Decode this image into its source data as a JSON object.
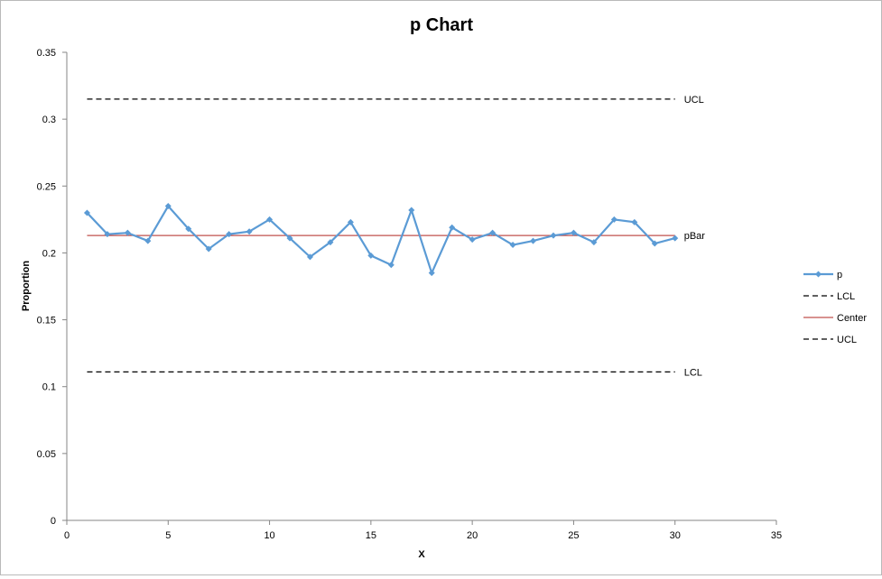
{
  "chart_data": {
    "type": "line",
    "title": "p Chart",
    "xlabel": "X",
    "ylabel": "Proportion",
    "xlim": [
      0,
      35
    ],
    "ylim": [
      0,
      0.35
    ],
    "x_ticks": [
      "0",
      "5",
      "10",
      "15",
      "20",
      "25",
      "30",
      "35"
    ],
    "y_ticks": [
      "0",
      "0.05",
      "0.1",
      "0.15",
      "0.2",
      "0.25",
      "0.3",
      "0.35"
    ],
    "grid": false,
    "legend_position": "right",
    "series": [
      {
        "name": "p",
        "color": "#5b9bd5",
        "style": "solid-markers",
        "x": [
          1,
          2,
          3,
          4,
          5,
          6,
          7,
          8,
          9,
          10,
          11,
          12,
          13,
          14,
          15,
          16,
          17,
          18,
          19,
          20,
          21,
          22,
          23,
          24,
          25,
          26,
          27,
          28,
          29,
          30
        ],
        "y": [
          0.23,
          0.214,
          0.215,
          0.209,
          0.235,
          0.218,
          0.203,
          0.214,
          0.216,
          0.225,
          0.211,
          0.197,
          0.208,
          0.223,
          0.198,
          0.191,
          0.232,
          0.185,
          0.219,
          0.21,
          0.215,
          0.206,
          0.209,
          0.213,
          0.215,
          0.208,
          0.225,
          0.223,
          0.207,
          0.211
        ]
      },
      {
        "name": "LCL",
        "color": "#000000",
        "style": "dashed",
        "x": [
          1,
          30
        ],
        "y": [
          0.111,
          0.111
        ]
      },
      {
        "name": "Center",
        "color": "#c0504d",
        "style": "solid",
        "x": [
          1,
          30
        ],
        "y": [
          0.213,
          0.213
        ]
      },
      {
        "name": "UCL",
        "color": "#000000",
        "style": "dashed",
        "x": [
          1,
          30
        ],
        "y": [
          0.315,
          0.315
        ]
      }
    ],
    "annotations": [
      {
        "text": "UCL",
        "x": 30,
        "y": 0.315
      },
      {
        "text": "pBar",
        "x": 30,
        "y": 0.213
      },
      {
        "text": "LCL",
        "x": 30,
        "y": 0.111
      }
    ]
  }
}
